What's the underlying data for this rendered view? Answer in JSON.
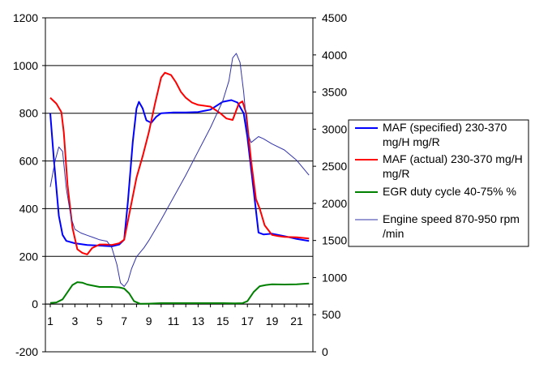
{
  "chart_data": {
    "type": "line",
    "x_ticks": [
      "1",
      "3",
      "5",
      "7",
      "9",
      "11",
      "13",
      "15",
      "17",
      "19",
      "21"
    ],
    "y_left": {
      "min": -200,
      "max": 1200,
      "ticks": [
        "-200",
        "0",
        "200",
        "400",
        "600",
        "800",
        "1000",
        "1200"
      ]
    },
    "y_right": {
      "min": 0,
      "max": 4500,
      "ticks": [
        "0",
        "500",
        "1000",
        "1500",
        "2000",
        "2500",
        "3000",
        "3500",
        "4000",
        "4500"
      ]
    },
    "grid": true,
    "legend_position": "right",
    "series": [
      {
        "name": "MAF (specified) 230-370 mg/H  mg/R",
        "color": "#0000ff",
        "axis": "left",
        "points": [
          [
            1,
            800
          ],
          [
            1.3,
            600
          ],
          [
            1.7,
            370
          ],
          [
            2,
            290
          ],
          [
            2.3,
            265
          ],
          [
            3,
            255
          ],
          [
            4,
            248
          ],
          [
            5,
            245
          ],
          [
            6,
            242
          ],
          [
            6.6,
            250
          ],
          [
            7,
            270
          ],
          [
            7.3,
            430
          ],
          [
            7.7,
            680
          ],
          [
            8,
            820
          ],
          [
            8.2,
            848
          ],
          [
            8.5,
            820
          ],
          [
            8.8,
            770
          ],
          [
            9.2,
            760
          ],
          [
            9.6,
            785
          ],
          [
            10,
            800
          ],
          [
            11,
            803
          ],
          [
            12,
            803
          ],
          [
            13,
            805
          ],
          [
            14,
            815
          ],
          [
            15,
            848
          ],
          [
            15.7,
            855
          ],
          [
            16.2,
            845
          ],
          [
            16.7,
            800
          ],
          [
            17,
            700
          ],
          [
            17.5,
            480
          ],
          [
            17.9,
            300
          ],
          [
            18.3,
            292
          ],
          [
            19,
            295
          ],
          [
            20,
            285
          ],
          [
            21,
            273
          ],
          [
            22,
            265
          ]
        ]
      },
      {
        "name": "MAF (actual) 230-370 mg/H mg/R",
        "color": "#ff0000",
        "axis": "left",
        "points": [
          [
            1,
            865
          ],
          [
            1.5,
            840
          ],
          [
            1.9,
            805
          ],
          [
            2.1,
            720
          ],
          [
            2.4,
            500
          ],
          [
            2.8,
            320
          ],
          [
            3.2,
            230
          ],
          [
            3.6,
            215
          ],
          [
            4,
            208
          ],
          [
            4.4,
            235
          ],
          [
            5,
            250
          ],
          [
            5.5,
            250
          ],
          [
            6,
            248
          ],
          [
            6.6,
            255
          ],
          [
            7,
            270
          ],
          [
            7.5,
            400
          ],
          [
            8,
            530
          ],
          [
            8.5,
            620
          ],
          [
            9,
            720
          ],
          [
            9.5,
            840
          ],
          [
            10,
            950
          ],
          [
            10.3,
            970
          ],
          [
            10.8,
            960
          ],
          [
            11.2,
            930
          ],
          [
            11.6,
            890
          ],
          [
            12,
            865
          ],
          [
            12.5,
            845
          ],
          [
            13,
            835
          ],
          [
            14,
            828
          ],
          [
            14.8,
            800
          ],
          [
            15.3,
            778
          ],
          [
            15.8,
            772
          ],
          [
            16.3,
            840
          ],
          [
            16.6,
            850
          ],
          [
            16.9,
            800
          ],
          [
            17.3,
            600
          ],
          [
            17.7,
            440
          ],
          [
            18,
            400
          ],
          [
            18.4,
            330
          ],
          [
            19,
            290
          ],
          [
            19.5,
            285
          ],
          [
            20,
            282
          ],
          [
            21,
            280
          ],
          [
            22,
            275
          ]
        ]
      },
      {
        "name": "EGR duty cycle 40-75%  %",
        "color": "#008000",
        "axis": "left",
        "points": [
          [
            1,
            5
          ],
          [
            1.5,
            7
          ],
          [
            2,
            20
          ],
          [
            2.4,
            50
          ],
          [
            2.8,
            80
          ],
          [
            3.2,
            92
          ],
          [
            3.6,
            90
          ],
          [
            4,
            82
          ],
          [
            5,
            72
          ],
          [
            6,
            72
          ],
          [
            6.6,
            70
          ],
          [
            7,
            65
          ],
          [
            7.4,
            45
          ],
          [
            7.8,
            12
          ],
          [
            8.3,
            1
          ],
          [
            9,
            2
          ],
          [
            10,
            4
          ],
          [
            11,
            4
          ],
          [
            12,
            4
          ],
          [
            13,
            4
          ],
          [
            14,
            4
          ],
          [
            15,
            4
          ],
          [
            16,
            3
          ],
          [
            16.6,
            4
          ],
          [
            17,
            12
          ],
          [
            17.5,
            50
          ],
          [
            18,
            75
          ],
          [
            18.5,
            80
          ],
          [
            19,
            83
          ],
          [
            20,
            82
          ],
          [
            21,
            83
          ],
          [
            22,
            86
          ]
        ]
      },
      {
        "name": "Engine speed 870-950 rpm /min",
        "color": "#3333aa",
        "axis": "right",
        "points": [
          [
            1,
            2220
          ],
          [
            1.4,
            2580
          ],
          [
            1.7,
            2760
          ],
          [
            2,
            2700
          ],
          [
            2.3,
            2200
          ],
          [
            2.7,
            1800
          ],
          [
            3,
            1650
          ],
          [
            3.5,
            1600
          ],
          [
            4,
            1570
          ],
          [
            4.5,
            1540
          ],
          [
            5,
            1510
          ],
          [
            5.6,
            1490
          ],
          [
            6,
            1400
          ],
          [
            6.4,
            1180
          ],
          [
            6.7,
            930
          ],
          [
            7,
            880
          ],
          [
            7.3,
            950
          ],
          [
            7.6,
            1120
          ],
          [
            8,
            1280
          ],
          [
            8.6,
            1400
          ],
          [
            9,
            1500
          ],
          [
            10,
            1780
          ],
          [
            11,
            2080
          ],
          [
            12,
            2380
          ],
          [
            13,
            2700
          ],
          [
            14,
            3020
          ],
          [
            15,
            3380
          ],
          [
            15.5,
            3650
          ],
          [
            15.8,
            3960
          ],
          [
            16.1,
            4020
          ],
          [
            16.4,
            3900
          ],
          [
            16.7,
            3500
          ],
          [
            17,
            2950
          ],
          [
            17.3,
            2820
          ],
          [
            17.6,
            2860
          ],
          [
            17.9,
            2900
          ],
          [
            18.3,
            2870
          ],
          [
            19,
            2800
          ],
          [
            20,
            2720
          ],
          [
            21,
            2580
          ],
          [
            22,
            2380
          ]
        ]
      }
    ]
  }
}
